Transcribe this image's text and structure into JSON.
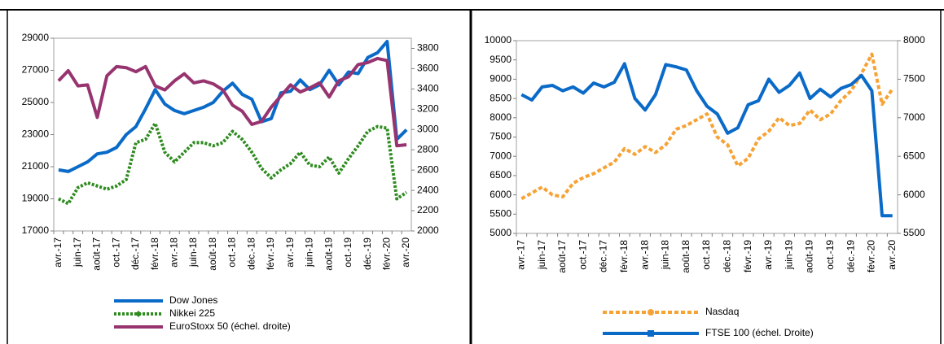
{
  "chart_data": [
    {
      "type": "line",
      "categories": [
        "avr.-17",
        null,
        "juin-17",
        null,
        "août-17",
        null,
        "oct.-17",
        null,
        "déc.-17",
        null,
        "févr.-18",
        null,
        "avr.-18",
        null,
        "juin-18",
        null,
        "août-18",
        null,
        "oct.-18",
        null,
        "déc.-18",
        null,
        "févr.-19",
        null,
        "avr.-19",
        null,
        "juin-19",
        null,
        "août-19",
        null,
        "oct.-19",
        null,
        "déc.-19",
        null,
        "févr.-20",
        null,
        "avr.-20"
      ],
      "ylim": [
        17000,
        29000
      ],
      "yticks": [
        17000,
        19000,
        21000,
        23000,
        25000,
        27000,
        29000
      ],
      "y2lim": [
        2000,
        3900
      ],
      "y2ticks": [
        2000,
        2200,
        2400,
        2600,
        2800,
        3000,
        3200,
        3400,
        3600,
        3800
      ],
      "grid": false,
      "series": [
        {
          "name": "Dow Jones",
          "color": "#0a6ac8",
          "dash": "solid",
          "values": [
            20800,
            20700,
            21000,
            21300,
            21800,
            21900,
            22200,
            23000,
            23500,
            24600,
            25800,
            24900,
            24500,
            24300,
            24500,
            24700,
            25000,
            25700,
            26200,
            25500,
            25200,
            23800,
            24000,
            25600,
            25700,
            26400,
            25800,
            26100,
            27000,
            26100,
            26900,
            26800,
            27800,
            28100,
            28800,
            22700,
            23300
          ]
        },
        {
          "name": "Nikkei 225",
          "color": "#2e8b1f",
          "dash": "dotted",
          "marker": "diamond",
          "values": [
            19000,
            18700,
            19700,
            20000,
            19800,
            19600,
            19800,
            20200,
            22500,
            22700,
            23700,
            21900,
            21300,
            21900,
            22500,
            22500,
            22300,
            22500,
            23200,
            22700,
            21900,
            20900,
            20300,
            20800,
            21200,
            21900,
            21100,
            21000,
            21600,
            20600,
            21500,
            22300,
            23200,
            23500,
            23400,
            19000,
            19400
          ]
        },
        {
          "name": "EuroStoxx 50 (échel. droite)",
          "color": "#973470",
          "dash": "solid",
          "axis": "y2",
          "values": [
            3480,
            3580,
            3430,
            3440,
            3120,
            3530,
            3620,
            3610,
            3570,
            3620,
            3430,
            3390,
            3480,
            3550,
            3460,
            3480,
            3450,
            3390,
            3240,
            3180,
            3050,
            3080,
            3220,
            3330,
            3440,
            3370,
            3410,
            3460,
            3320,
            3480,
            3520,
            3640,
            3660,
            3700,
            3680,
            2840,
            2850
          ]
        }
      ]
    },
    {
      "type": "line",
      "categories": [
        "avr.-17",
        null,
        "juin-17",
        null,
        "août-17",
        null,
        "oct.-17",
        null,
        "déc.-17",
        null,
        "févr.-18",
        null,
        "avr.-18",
        null,
        "juin-18",
        null,
        "août-18",
        null,
        "oct.-18",
        null,
        "déc.-18",
        null,
        "févr.-19",
        null,
        "avr.-19",
        null,
        "juin-19",
        null,
        "août-19",
        null,
        "oct.-19",
        null,
        "déc.-19",
        null,
        "févr.-20",
        null,
        "avr.-20"
      ],
      "ylim": [
        5000,
        10000
      ],
      "yticks": [
        5000,
        5500,
        6000,
        6500,
        7000,
        7500,
        8000,
        8500,
        9000,
        9500,
        10000
      ],
      "y2lim": [
        5500,
        8000
      ],
      "y2ticks": [
        5500,
        6000,
        6500,
        7000,
        7500,
        8000
      ],
      "grid": false,
      "series": [
        {
          "name": "Nasdaq",
          "color": "#f7a234",
          "dash": "dashed",
          "marker": "circle",
          "values": [
            5900,
            6050,
            6200,
            6000,
            5950,
            6300,
            6450,
            6550,
            6700,
            6850,
            7200,
            7050,
            7250,
            7100,
            7300,
            7700,
            7800,
            7950,
            8100,
            7500,
            7300,
            6750,
            6950,
            7450,
            7650,
            8000,
            7800,
            7850,
            8200,
            7950,
            8100,
            8450,
            8700,
            9150,
            9650,
            8350,
            8750
          ]
        },
        {
          "name": "FTSE 100 (échel. Droite)",
          "color": "#0a6ac8",
          "dash": "solid",
          "marker": "square",
          "axis": "y2",
          "values": [
            7300,
            7230,
            7400,
            7420,
            7350,
            7400,
            7320,
            7450,
            7400,
            7460,
            7700,
            7250,
            7100,
            7300,
            7690,
            7660,
            7620,
            7350,
            7150,
            7050,
            6800,
            6870,
            7170,
            7220,
            7500,
            7330,
            7420,
            7580,
            7250,
            7370,
            7270,
            7380,
            7430,
            7550,
            7350,
            5730,
            5730
          ]
        }
      ]
    }
  ]
}
